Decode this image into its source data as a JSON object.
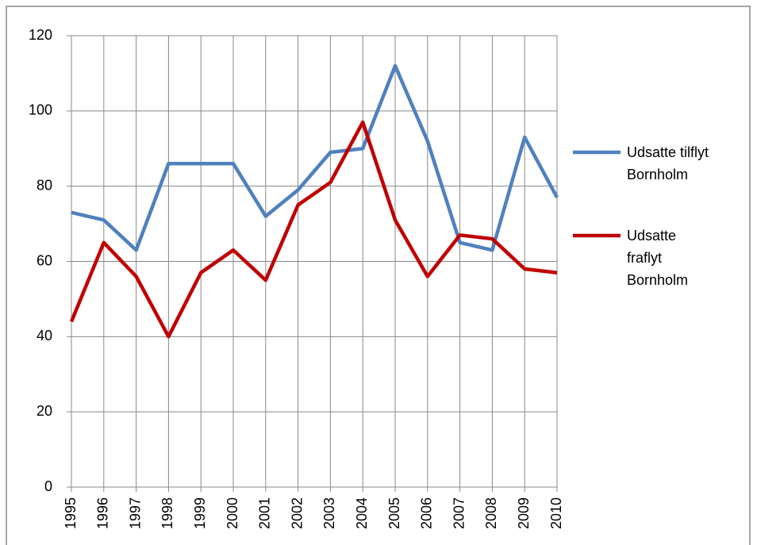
{
  "chart_data": {
    "type": "line",
    "categories": [
      "1995",
      "1996",
      "1997",
      "1998",
      "1999",
      "2000",
      "2001",
      "2002",
      "2003",
      "2004",
      "2005",
      "2006",
      "2007",
      "2008",
      "2009",
      "2010"
    ],
    "series": [
      {
        "name": "Udsatte tilflyt Bornholm",
        "color": "#4f81bd",
        "values": [
          73,
          71,
          63,
          86,
          86,
          86,
          72,
          79,
          89,
          90,
          112,
          92,
          65,
          63,
          93,
          77
        ]
      },
      {
        "name": "Udsatte fraflyt Bornholm",
        "color": "#c00000",
        "values": [
          44,
          65,
          56,
          40,
          57,
          63,
          55,
          75,
          81,
          97,
          71,
          56,
          67,
          66,
          58,
          57
        ]
      }
    ],
    "ylim": [
      0,
      120
    ],
    "yticks": [
      0,
      20,
      40,
      60,
      80,
      100,
      120
    ],
    "grid": true,
    "legend": "right"
  }
}
